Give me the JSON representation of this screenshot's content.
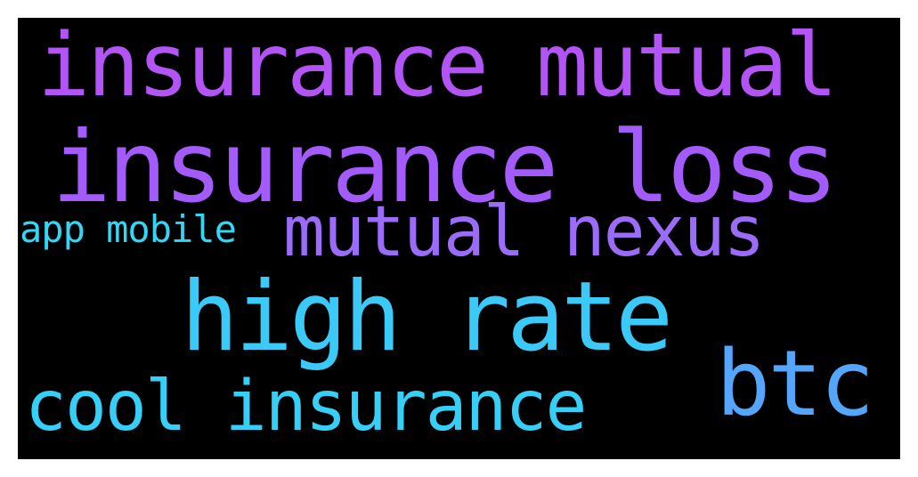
{
  "wordcloud": {
    "background": "#000000",
    "words": [
      {
        "key": "insurance_mutual",
        "text": "insurance mutual",
        "color": "#b254f6"
      },
      {
        "key": "insurance_loss",
        "text": "insurance loss",
        "color": "#a35cfb"
      },
      {
        "key": "app_mobile",
        "text": "app mobile",
        "color": "#33d6f5"
      },
      {
        "key": "mutual_nexus",
        "text": "mutual nexus",
        "color": "#9b6bfa"
      },
      {
        "key": "high_rate",
        "text": "high rate",
        "color": "#3bcaf8"
      },
      {
        "key": "btc",
        "text": "btc",
        "color": "#53a6fb"
      },
      {
        "key": "cool_insurance",
        "text": "cool insurance",
        "color": "#35cff7"
      }
    ]
  }
}
